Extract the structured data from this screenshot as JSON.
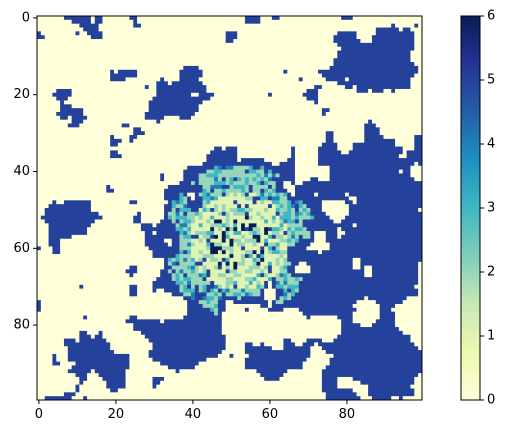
{
  "chart_data": {
    "type": "heatmap",
    "title": "",
    "xlabel": "",
    "ylabel": "",
    "grid": false,
    "colormap": "YlGnBu",
    "colormap_stops": [
      "#ffffd9",
      "#edf8b1",
      "#c7e9b4",
      "#7fcdbb",
      "#41b6c4",
      "#1d91c0",
      "#225ea8",
      "#253494",
      "#081d58"
    ],
    "value_range": [
      0,
      6
    ],
    "grid_size": [
      100,
      100
    ],
    "x_axis": {
      "range": [
        0,
        99
      ],
      "ticks": [
        0,
        20,
        40,
        60,
        80
      ],
      "tick_labels": [
        "0",
        "20",
        "40",
        "60",
        "80"
      ]
    },
    "y_axis": {
      "range": [
        0,
        99
      ],
      "inverted": true,
      "ticks": [
        0,
        20,
        40,
        60,
        80
      ],
      "tick_labels": [
        "0",
        "20",
        "40",
        "60",
        "80"
      ]
    },
    "colorbar": {
      "ticks": [
        0,
        1,
        2,
        3,
        4,
        5,
        6
      ],
      "tick_labels": [
        "0",
        "1",
        "2",
        "3",
        "4",
        "5",
        "6"
      ]
    },
    "dominant_values": {
      "background": 0,
      "outer_regions": 5,
      "central_ring": 2,
      "core": 6
    }
  }
}
